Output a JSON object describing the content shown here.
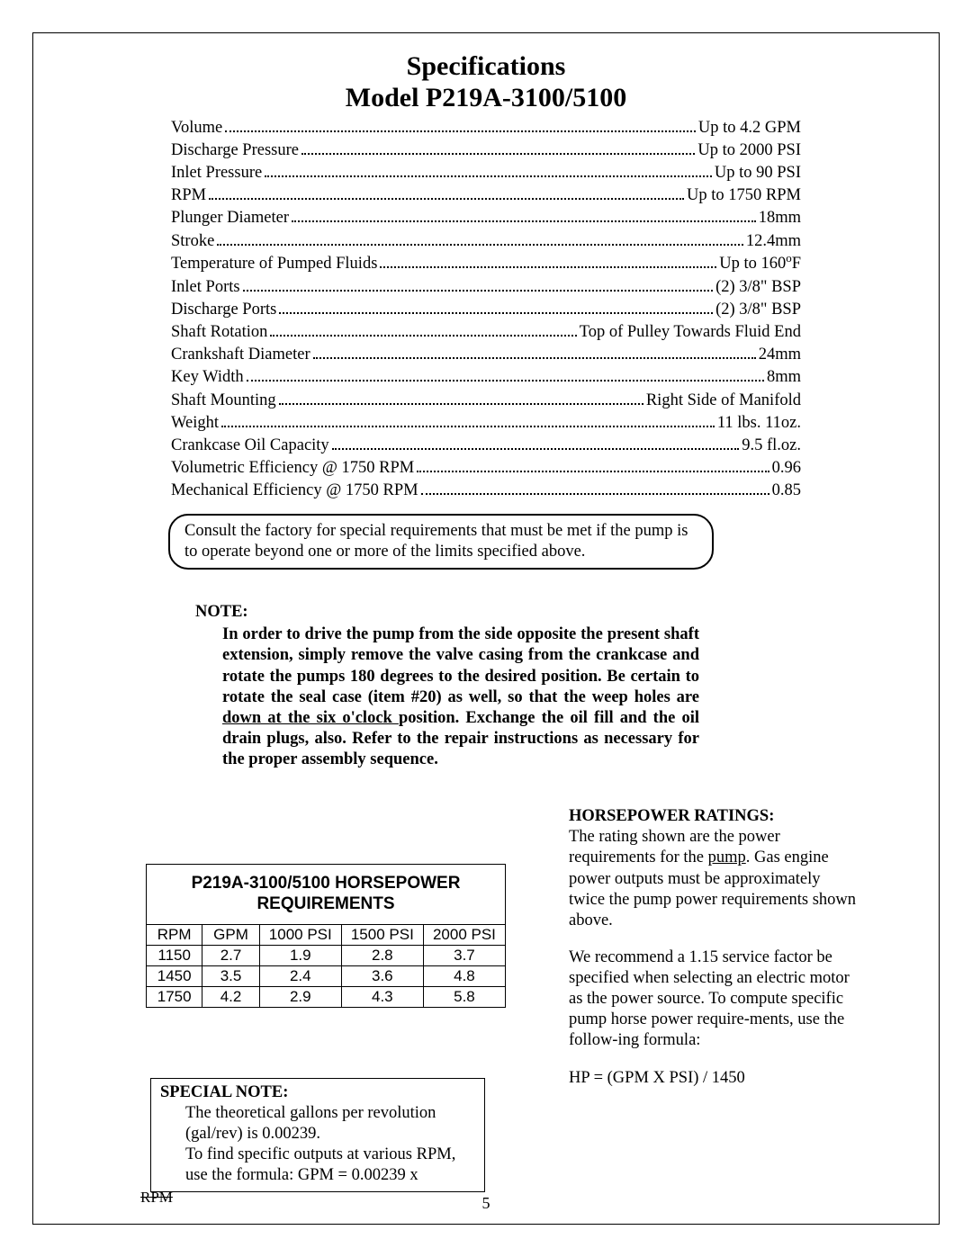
{
  "title_line1": "Specifications",
  "title_line2": "Model P219A-3100/5100",
  "specs": [
    {
      "label": "Volume",
      "value": "Up to 4.2 GPM"
    },
    {
      "label": "Discharge Pressure",
      "value": "Up to 2000 PSI"
    },
    {
      "label": "Inlet Pressure",
      "value": "Up to 90 PSI"
    },
    {
      "label": "RPM",
      "value": "Up to 1750 RPM"
    },
    {
      "label": "Plunger Diameter",
      "value": "18mm"
    },
    {
      "label": "Stroke",
      "value": "12.4mm"
    },
    {
      "label": "Temperature of Pumped Fluids",
      "value_html": "Up to 160°F"
    },
    {
      "label": "Inlet Ports",
      "value": "(2) 3/8\" BSP"
    },
    {
      "label": "Discharge Ports",
      "value": "(2) 3/8\" BSP"
    },
    {
      "label": "Shaft Rotation",
      "value": "Top of Pulley Towards Fluid End"
    },
    {
      "label": "Crankshaft Diameter",
      "value": "24mm"
    },
    {
      "label": "Key Width",
      "value": "8mm"
    },
    {
      "label": "Shaft Mounting",
      "value": "Right Side of Manifold"
    },
    {
      "label": "Weight",
      "value": "11 lbs. 11oz."
    },
    {
      "label": "Crankcase Oil Capacity",
      "value": "9.5 fl.oz."
    },
    {
      "label": "Volumetric Efficiency @ 1750 RPM",
      "value": "0.96"
    },
    {
      "label": "Mechanical Efficiency @ 1750 RPM",
      "value": "0.85"
    }
  ],
  "consult_box": "Consult the factory for special requirements that must be met if the pump is to operate beyond one or more of the limits specified above.",
  "note_heading": "NOTE:",
  "note_body_pre": "In order to drive the pump from the side opposite the present shaft extension, simply remove the valve casing from the crankcase and rotate the pumps 180 degrees to the desired position.  Be certain to rotate the seal case (item #20) as well, so that the weep holes are ",
  "note_body_u1": "down at the six o'clock ",
  "note_body_post": "position.  Exchange the oil fill and the oil drain plugs, also.  Refer to the repair instructions as necessary for the proper assembly sequence.",
  "hp_table": {
    "title": "P219A-3100/5100 HORSEPOWER REQUIREMENTS",
    "columns": [
      "RPM",
      "GPM",
      "1000 PSI",
      "1500 PSI",
      "2000 PSI"
    ],
    "rows": [
      [
        "1150",
        "2.7",
        "1.9",
        "2.8",
        "3.7"
      ],
      [
        "1450",
        "3.5",
        "2.4",
        "3.6",
        "4.8"
      ],
      [
        "1750",
        "4.2",
        "2.9",
        "4.3",
        "5.8"
      ]
    ]
  },
  "special_note": {
    "heading": "SPECIAL NOTE:",
    "line1": "The theoretical gallons per revolution (gal/rev) is 0.00239.",
    "line2": "To find specific outputs at various RPM, use the formula:  GPM = 0.00239 x",
    "rpm_strike": "RPM"
  },
  "hp_ratings": {
    "heading": "HORSEPOWER RATINGS:",
    "p1_pre": "The rating shown are the power requirements for the ",
    "p1_u": "pump",
    "p1_post": ".  Gas engine power outputs must be approximately twice the pump power requirements shown above.",
    "p2": "We recommend a 1.15 service factor          be specified when selecting an electric motor as the power source.           To compute specific pump horse power require-ments, use the                    follow-ing formula:",
    "formula": "HP = (GPM X PSI) / 1450"
  },
  "page_number": "5"
}
